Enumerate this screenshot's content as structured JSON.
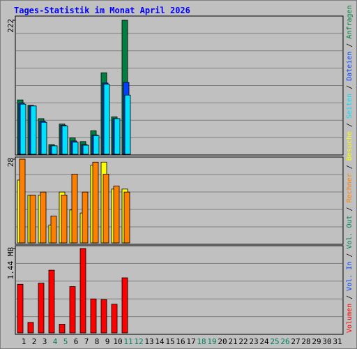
{
  "title": "Tages-Statistik im Monat April 2026",
  "legend_separator": "/",
  "chart_data": [
    {
      "type": "bar",
      "ylim": [
        0,
        222
      ],
      "yticks": [
        222
      ],
      "series": [
        {
          "name": "Anfragen",
          "color": "#008040",
          "values": [
            90,
            81,
            59,
            16,
            50,
            27,
            21,
            39,
            135,
            62,
            222,
            null,
            null,
            null,
            null,
            null,
            null,
            null,
            null,
            null,
            null,
            null,
            null,
            null,
            null,
            null,
            null,
            null,
            null,
            null,
            null
          ]
        },
        {
          "name": "Dateien",
          "color": "#0040ff",
          "values": [
            85,
            80,
            55,
            14,
            48,
            22,
            16,
            32,
            118,
            59,
            119,
            null,
            null,
            null,
            null,
            null,
            null,
            null,
            null,
            null,
            null,
            null,
            null,
            null,
            null,
            null,
            null,
            null,
            null,
            null,
            null
          ]
        },
        {
          "name": "Seiten",
          "color": "#00e0ff",
          "values": [
            83,
            80,
            53,
            14,
            47,
            20,
            15,
            31,
            116,
            59,
            98,
            null,
            null,
            null,
            null,
            null,
            null,
            null,
            null,
            null,
            null,
            null,
            null,
            null,
            null,
            null,
            null,
            null,
            null,
            null,
            null
          ]
        }
      ]
    },
    {
      "type": "bar",
      "ylim": [
        0,
        28
      ],
      "yticks": [
        28
      ],
      "series": [
        {
          "name": "Besuche",
          "color": "#ffff00",
          "values": [
            21,
            16,
            16,
            6,
            17,
            11,
            10,
            26,
            27,
            18,
            18,
            null,
            null,
            null,
            null,
            null,
            null,
            null,
            null,
            null,
            null,
            null,
            null,
            null,
            null,
            null,
            null,
            null,
            null,
            null,
            null
          ]
        },
        {
          "name": "Rechner",
          "color": "#ff8000",
          "values": [
            28,
            16,
            17,
            9,
            16,
            23,
            17,
            27,
            23,
            19,
            17,
            null,
            null,
            null,
            null,
            null,
            null,
            null,
            null,
            null,
            null,
            null,
            null,
            null,
            null,
            null,
            null,
            null,
            null,
            null,
            null
          ]
        }
      ]
    },
    {
      "type": "bar",
      "ylim": [
        0,
        1.44
      ],
      "yticks": [
        {
          "value": 1.44,
          "label": "1.44 MB"
        }
      ],
      "categories": [
        "1",
        "2",
        "3",
        "4",
        "5",
        "6",
        "7",
        "8",
        "9",
        "10",
        "11",
        "12",
        "13",
        "14",
        "15",
        "16",
        "17",
        "18",
        "19",
        "20",
        "21",
        "22",
        "23",
        "24",
        "25",
        "26",
        "27",
        "28",
        "29",
        "30",
        "31"
      ],
      "category_colors": [
        "#000000",
        "#000000",
        "#000000",
        "#00805c",
        "#00805c",
        "#000000",
        "#000000",
        "#000000",
        "#000000",
        "#000000",
        "#00805c",
        "#00805c",
        "#000000",
        "#000000",
        "#000000",
        "#000000",
        "#000000",
        "#00805c",
        "#00805c",
        "#000000",
        "#000000",
        "#000000",
        "#000000",
        "#000000",
        "#00805c",
        "#00805c",
        "#000000",
        "#000000",
        "#000000",
        "#000000",
        "#000000"
      ],
      "series": [
        {
          "name": "Vol. Out",
          "color": "#00805c",
          "values": [
            null,
            null,
            null,
            null,
            null,
            null,
            null,
            null,
            null,
            null,
            null,
            null,
            null,
            null,
            null,
            null,
            null,
            null,
            null,
            null,
            null,
            null,
            null,
            null,
            null,
            null,
            null,
            null,
            null,
            null,
            null
          ]
        },
        {
          "name": "Vol. In",
          "color": "#0040ff",
          "values": [
            null,
            null,
            null,
            null,
            null,
            null,
            null,
            null,
            null,
            null,
            null,
            null,
            null,
            null,
            null,
            null,
            null,
            null,
            null,
            null,
            null,
            null,
            null,
            null,
            null,
            null,
            null,
            null,
            null,
            null,
            null
          ]
        },
        {
          "name": "Volumen",
          "color": "#ff0000",
          "values": [
            0.83,
            0.18,
            0.85,
            1.07,
            0.15,
            0.79,
            1.44,
            0.58,
            0.57,
            0.49,
            0.94,
            null,
            null,
            null,
            null,
            null,
            null,
            null,
            null,
            null,
            null,
            null,
            null,
            null,
            null,
            null,
            null,
            null,
            null,
            null,
            null
          ]
        }
      ]
    }
  ]
}
